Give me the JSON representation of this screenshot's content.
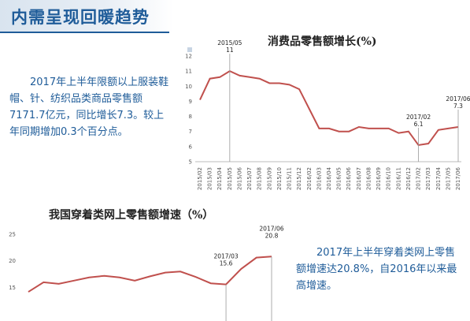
{
  "page": {
    "title": "内需呈现回暖趋势",
    "accent_color": "#1f5c99",
    "line_color": "#c0504d"
  },
  "text_blocks": {
    "consumer_goods": "2017年上半年限额以上服装鞋帽、针、纺织品类商品零售额7171.7亿元，同比增长7.3。较上年同期增加0.3个百分点。",
    "online_apparel": "2017年上半年穿着类网上零售额增速达20.8%，自2016年以来最高增速。"
  },
  "chart_data": [
    {
      "type": "line",
      "title": "消费品零售额增长(%)",
      "x": [
        "2015/02",
        "2015/03",
        "2015/04",
        "2015/05",
        "2015/06",
        "2015/07",
        "2015/08",
        "2015/09",
        "2015/10",
        "2015/11",
        "2015/12",
        "2016/02",
        "2016/03",
        "2016/04",
        "2016/05",
        "2016/06",
        "2016/07",
        "2016/08",
        "2016/09",
        "2016/10",
        "2016/11",
        "2016/12",
        "2017/02",
        "2017/03",
        "2017/04",
        "2017/05",
        "2017/06"
      ],
      "values": [
        9.1,
        10.5,
        10.6,
        11.0,
        10.7,
        10.6,
        10.5,
        10.2,
        10.2,
        10.1,
        9.8,
        8.5,
        7.2,
        7.2,
        7.0,
        7.0,
        7.3,
        7.2,
        7.2,
        7.2,
        6.9,
        7.0,
        6.1,
        6.2,
        7.1,
        7.2,
        7.3
      ],
      "ylim": [
        5,
        12
      ],
      "yticks": [
        5,
        6,
        7,
        8,
        9,
        10,
        11,
        12
      ],
      "annotations": [
        {
          "x": "2015/05",
          "label": "2015/05",
          "value": "11"
        },
        {
          "x": "2017/02",
          "label": "2017/02",
          "value": "6.1"
        },
        {
          "x": "2017/06",
          "label": "2017/06",
          "value": "7.3"
        }
      ]
    },
    {
      "type": "line",
      "title": "我国穿着类网上零售额增速（%）",
      "values": [
        14.2,
        16.0,
        15.7,
        16.3,
        16.9,
        17.2,
        16.9,
        16.3,
        17.1,
        17.8,
        18.0,
        17.0,
        15.8,
        15.6,
        18.5,
        20.6,
        20.8
      ],
      "ylim": [
        12,
        26
      ],
      "yticks": [
        15,
        20,
        25
      ],
      "annotations": [
        {
          "index": 13,
          "label": "2017/03",
          "value": "15.6"
        },
        {
          "index": 16,
          "label": "2017/06",
          "value": "20.8"
        }
      ]
    }
  ]
}
